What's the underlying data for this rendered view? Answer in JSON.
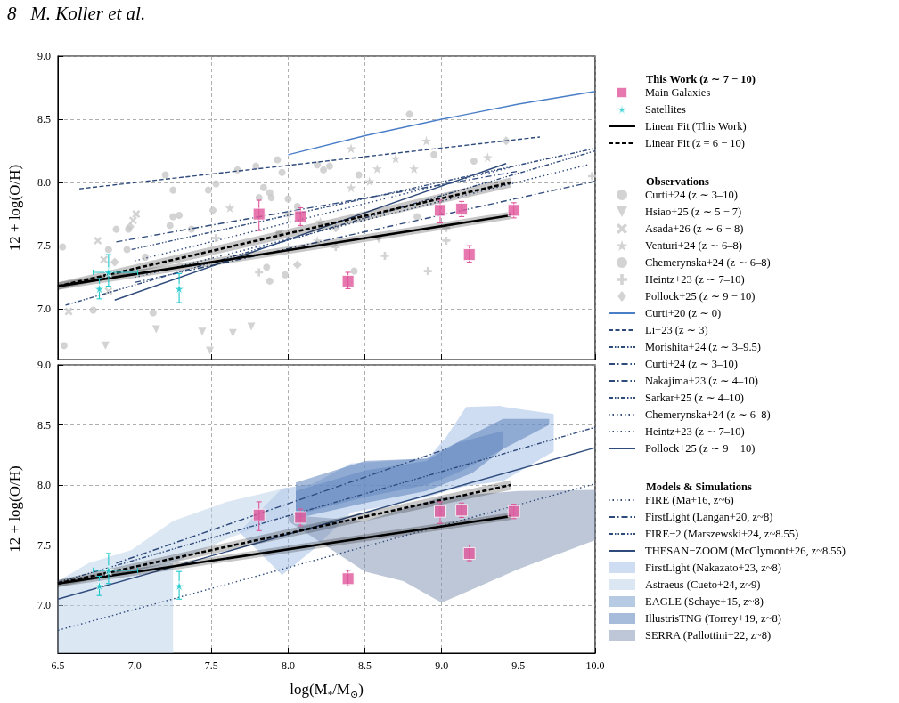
{
  "chart_data": [
    {
      "type": "scatter",
      "legend": "right",
      "legend_title": "This Work (z ∼ 7 − 10)",
      "ylabel": "12 + log(O/H)",
      "grid": true,
      "tick_labels": "y",
      "annotations": [
        "8   M. Koller et al.",
        "Observations"
      ],
      "xlim": [
        6.5,
        10.0
      ],
      "xticks": [
        {
          "value": 6.5,
          "label": "6.5"
        },
        {
          "value": 7,
          "label": "7.0"
        },
        {
          "value": 7.5,
          "label": "7.5"
        },
        {
          "value": 8,
          "label": "8.0"
        },
        {
          "value": 8.5,
          "label": "8.5"
        },
        {
          "value": 9,
          "label": "9.0"
        },
        {
          "value": 9.5,
          "label": "9.5"
        },
        {
          "value": 10,
          "label": "10.0"
        }
      ],
      "ylim": [
        6.6,
        9.0
      ],
      "yticks": [
        {
          "value": 7,
          "label": "7.0"
        },
        {
          "value": 7.5,
          "label": "7.5"
        },
        {
          "value": 8,
          "label": "8.0"
        },
        {
          "value": 8.5,
          "label": "8.5"
        },
        {
          "value": 9,
          "label": "9.0"
        }
      ],
      "series": [
        {
          "name": "Main Galaxies",
          "marker": "square",
          "color": "#e0569b",
          "x": [
            7.81,
            8.08,
            8.39,
            8.99,
            9.13,
            9.18,
            9.47
          ],
          "values": [
            7.75,
            7.73,
            7.22,
            7.78,
            7.79,
            7.43,
            7.78
          ],
          "errors": [
            [
              7.62,
              7.86
            ],
            [
              7.66,
              7.8
            ],
            [
              7.16,
              7.29
            ],
            [
              7.68,
              7.86
            ],
            [
              7.73,
              7.85
            ],
            [
              7.37,
              7.5
            ],
            [
              7.72,
              7.84
            ]
          ]
        },
        {
          "name": "Satellites",
          "marker": "star",
          "color": "#1cc8cc",
          "x": [
            6.77,
            6.83,
            7.29
          ],
          "values": [
            7.16,
            7.29,
            7.16
          ],
          "errors": [
            [
              7.08,
              7.24
            ],
            [
              7.18,
              7.43
            ],
            [
              7.05,
              7.28
            ]
          ],
          "xerrors": [
            null,
            [
              6.73,
              7.02
            ],
            null
          ]
        },
        {
          "name": "Linear Fit (This Work)",
          "type": "line",
          "line_style": "solid",
          "color": "#000000",
          "x": [
            6.5,
            9.45
          ],
          "values": [
            7.18,
            7.74
          ],
          "lower": [
            7.15,
            7.71
          ],
          "upper": [
            7.21,
            7.77
          ]
        },
        {
          "name": "Linear Fit (z = 6 − 10)",
          "type": "line",
          "line_style": "dashed",
          "color": "#000000",
          "x": [
            6.5,
            9.45
          ],
          "values": [
            7.18,
            8.0
          ],
          "lower": [
            7.15,
            7.96
          ],
          "upper": [
            7.21,
            8.04
          ]
        },
        {
          "name": "Curti+24 (z ∼ 3–10)",
          "marker": "circle",
          "color": "#c8c8c8",
          "x": [
            8.79,
            7.93,
            7.79,
            7.67,
            7.96,
            8.19,
            8.23,
            8.27,
            8.95,
            9.21,
            7.2,
            7.25,
            7.53,
            7.48,
            7.84,
            7.88,
            7.81,
            7.89,
            8.0,
            8.46,
            8.06,
            8.0,
            7.25,
            7.29,
            7.23,
            7.37,
            6.88,
            6.96,
            6.95,
            7.07,
            7.51,
            7.94,
            7.86,
            7.88,
            7.98,
            8.4,
            8.43,
            8.84
          ],
          "values": [
            8.54,
            8.18,
            8.13,
            8.1,
            8.08,
            8.14,
            8.1,
            8.13,
            8.22,
            8.17,
            8.06,
            7.94,
            7.99,
            7.94,
            7.96,
            7.92,
            7.88,
            7.88,
            7.87,
            8.06,
            7.81,
            7.75,
            7.73,
            7.74,
            7.66,
            7.63,
            7.63,
            7.63,
            7.47,
            7.41,
            7.78,
            7.6,
            7.33,
            7.22,
            7.27,
            null,
            7.3,
            7.73
          ]
        },
        {
          "name": "Hsiao+25 (z ∼ 5 − 7)",
          "marker": "triangle_down",
          "color": "#c8c8c8",
          "x": [
            6.81,
            7.14,
            7.44,
            7.49,
            7.64,
            7.76,
            8.59
          ],
          "values": [
            6.71,
            6.84,
            6.82,
            6.67,
            6.81,
            6.86,
            7.55
          ]
        },
        {
          "name": "Asada+26 (z ∼ 6 − 8)",
          "marker": "cross",
          "color": "#c8c8c8",
          "x": [
            6.76,
            7.01,
            6.99,
            6.57,
            6.8,
            6.83
          ],
          "values": [
            7.54,
            7.75,
            7.7,
            6.98,
            7.39,
            7.14
          ]
        },
        {
          "name": "Venturi+24 (z ∼ 6–8)",
          "marker": "star",
          "color": "#c8c8c8",
          "x": [
            8.41,
            8.58,
            8.7,
            8.9,
            9.3,
            8.82,
            7.62,
            8.21,
            8.19,
            8.41,
            8.53
          ],
          "values": [
            8.27,
            8.11,
            8.19,
            8.33,
            8.2,
            8.11,
            7.8,
            7.69,
            7.54,
            7.96,
            8.01
          ]
        },
        {
          "name": "Chemerynska+24 (z ∼ 6–8)",
          "marker": "circle",
          "color": "#c8c8c8",
          "x": [
            6.54,
            6.73,
            7.12,
            6.53,
            6.83
          ],
          "values": [
            6.71,
            6.99,
            6.97,
            7.49,
            7.47
          ]
        },
        {
          "name": "Heintz+23 (z ∼ 7–10)",
          "marker": "plus",
          "color": "#c8c8c8",
          "x": [
            8.91,
            8.63,
            9.03,
            9.03,
            7.81,
            7.53,
            8.31,
            9.98
          ],
          "values": [
            7.3,
            7.42,
            7.54,
            7.64,
            7.29,
            7.56,
            7.49,
            8.05
          ]
        },
        {
          "name": "Pollock+25 (z ∼ 9 − 10)",
          "marker": "diamond",
          "color": "#c8c8c8",
          "x": [
            9.42,
            8.06,
            6.97,
            6.87,
            8.31
          ],
          "values": [
            8.33,
            7.35,
            7.65,
            7.37,
            7.64
          ]
        },
        {
          "name": "Curti+20 (z ∼ 0)",
          "type": "line",
          "line_style": "solid",
          "color": "#4a7fc8",
          "x": [
            8.0,
            8.5,
            9.0,
            9.5,
            10.0
          ],
          "values": [
            8.22,
            8.37,
            8.5,
            8.62,
            8.72
          ]
        },
        {
          "name": "Li+23 (z ∼ 3)",
          "type": "line",
          "line_style": "dashed",
          "color": "#2f4b7c",
          "x": [
            6.64,
            9.64
          ],
          "values": [
            7.95,
            8.36
          ]
        },
        {
          "name": "Morishita+24 (z ∼ 3–9.5)",
          "type": "line",
          "line_style": "dashdotdot",
          "color": "#2f4b7c",
          "x": [
            6.98,
            10.0
          ],
          "values": [
            7.47,
            8.27
          ]
        },
        {
          "name": "Curti+24 (z ∼ 3–10)",
          "type": "line",
          "line_style": "dashdot",
          "color": "#2f4b7c",
          "x": [
            6.88,
            9.5
          ],
          "values": [
            7.53,
            8.09
          ]
        },
        {
          "name": "Nakajima+23 (z ∼ 4–10)",
          "type": "line",
          "line_style": "dashdot",
          "color": "#2f4b7c",
          "x": [
            7.0,
            10.0
          ],
          "values": [
            7.21,
            8.01
          ]
        },
        {
          "name": "Sarkar+25 (z ∼ 4–10)",
          "type": "line",
          "line_style": "dashdotdot",
          "color": "#2f4b7c",
          "x": [
            6.55,
            10.0
          ],
          "values": [
            7.03,
            8.25
          ]
        },
        {
          "name": "Chemerynska+24 (z ∼ 6–8)",
          "type": "line",
          "line_style": "dotted",
          "color": "#2f4b7c",
          "x": [
            7.0,
            9.95
          ],
          "values": [
            7.25,
            8.14
          ]
        },
        {
          "name": "Heintz+23 (z ∼ 7–10)",
          "type": "line",
          "line_style": "dotted",
          "color": "#2f4b7c",
          "x": [
            7.0,
            9.45
          ],
          "values": [
            7.38,
            8.12
          ]
        },
        {
          "name": "Pollock+25 (z ∼ 9 − 10)",
          "type": "line",
          "line_style": "solid",
          "color": "#2f4b7c",
          "x": [
            6.87,
            9.42
          ],
          "values": [
            7.07,
            8.15
          ]
        }
      ]
    },
    {
      "type": "scatter",
      "legend": "right",
      "legend_title": "Models & Simulations",
      "xlabel": "log(M$_{*}$/M$_{⊙}$)",
      "ylabel": "12 + log(O/H)",
      "grid": true,
      "xlim": [
        6.5,
        10.0
      ],
      "xticks": [
        {
          "value": 6.5,
          "label": "6.5"
        },
        {
          "value": 7,
          "label": "7.0"
        },
        {
          "value": 7.5,
          "label": "7.5"
        },
        {
          "value": 8,
          "label": "8.0"
        },
        {
          "value": 8.5,
          "label": "8.5"
        },
        {
          "value": 9,
          "label": "9.0"
        },
        {
          "value": 9.5,
          "label": "9.5"
        },
        {
          "value": 10,
          "label": "10.0"
        }
      ],
      "ylim": [
        6.6,
        9.0
      ],
      "yticks": [
        {
          "value": 7,
          "label": "7.0"
        },
        {
          "value": 7.5,
          "label": "7.5"
        },
        {
          "value": 8,
          "label": "8.0"
        },
        {
          "value": 8.5,
          "label": "8.5"
        },
        {
          "value": 9,
          "label": "9.0"
        }
      ],
      "series": [
        {
          "name": "Main Galaxies",
          "marker": "square",
          "color": "#e0569b",
          "x": [
            7.81,
            8.08,
            8.39,
            8.99,
            9.13,
            9.18,
            9.47
          ],
          "values": [
            7.75,
            7.73,
            7.22,
            7.78,
            7.79,
            7.43,
            7.78
          ],
          "errors": [
            [
              7.62,
              7.86
            ],
            [
              7.66,
              7.8
            ],
            [
              7.16,
              7.29
            ],
            [
              7.68,
              7.86
            ],
            [
              7.73,
              7.85
            ],
            [
              7.37,
              7.5
            ],
            [
              7.72,
              7.84
            ]
          ]
        },
        {
          "name": "Satellites",
          "marker": "star",
          "color": "#1cc8cc",
          "x": [
            6.77,
            6.83,
            7.29
          ],
          "values": [
            7.16,
            7.29,
            7.16
          ],
          "errors": [
            [
              7.08,
              7.24
            ],
            [
              7.18,
              7.43
            ],
            [
              7.05,
              7.28
            ]
          ],
          "xerrors": [
            null,
            [
              6.73,
              7.02
            ],
            null
          ]
        },
        {
          "name": "Linear Fit (This Work)",
          "type": "line",
          "line_style": "solid",
          "color": "#000000",
          "x": [
            6.5,
            9.45
          ],
          "values": [
            7.18,
            7.74
          ],
          "lower": [
            7.15,
            7.71
          ],
          "upper": [
            7.21,
            7.77
          ]
        },
        {
          "name": "Linear Fit (z = 6 − 10)",
          "type": "line",
          "line_style": "dashed",
          "color": "#000000",
          "x": [
            6.5,
            9.45
          ],
          "values": [
            7.18,
            8.0
          ],
          "lower": [
            7.15,
            7.96
          ],
          "upper": [
            7.21,
            8.04
          ]
        },
        {
          "name": "FIRE (Ma+16, z~6)",
          "type": "line",
          "line_style": "dotted",
          "color": "#2f4b7c",
          "x": [
            6.5,
            10.0
          ],
          "values": [
            6.79,
            8.01
          ]
        },
        {
          "name": "FirstLight (Langan+20, z~8)",
          "type": "line",
          "line_style": "dashdot",
          "color": "#2f4b7c",
          "x": [
            6.88,
            9.03
          ],
          "values": [
            7.35,
            8.3
          ]
        },
        {
          "name": "FIRE−2 (Marszewski+24, z~8.55)",
          "type": "line",
          "line_style": "dashdotdot",
          "color": "#2f4b7c",
          "x": [
            6.5,
            10.0
          ],
          "values": [
            7.19,
            8.48
          ]
        },
        {
          "name": "THESAN−ZOOM (McClymont+26, z~8.55)",
          "type": "line",
          "line_style": "solid",
          "color": "#2f4b7c",
          "x": [
            6.5,
            10.0
          ],
          "values": [
            7.05,
            8.31
          ]
        },
        {
          "name": "FirstLight (Nakazato+23, z~8)",
          "type": "area",
          "color": "#9dbbe3",
          "x": [
            7.68,
            7.96,
            8.16,
            8.41,
            8.66,
            8.91,
            9.03,
            9.16,
            9.38,
            9.41,
            9.73
          ],
          "values": [
            null,
            null,
            null,
            null,
            null,
            null,
            null,
            null,
            null,
            null,
            null
          ],
          "lower": [
            7.61,
            7.25,
            7.46,
            7.77,
            7.83,
            7.9,
            7.95,
            7.99,
            8.03,
            8.04,
            8.28
          ],
          "upper": [
            7.61,
            7.97,
            8.01,
            8.18,
            8.2,
            8.22,
            8.4,
            8.65,
            8.66,
            8.65,
            8.59
          ]
        },
        {
          "name": "Astraeus (Cueto+24, z~9)",
          "type": "area",
          "color": "#b9cfea",
          "x": [
            6.5,
            6.7,
            6.98,
            7.25,
            7.25,
            7.6,
            8.0
          ],
          "values": [
            null,
            null,
            null,
            null,
            null,
            null,
            null
          ],
          "lower": [
            6.6,
            6.6,
            6.6,
            6.6,
            7.35,
            7.55,
            7.75
          ],
          "upper": [
            7.2,
            7.35,
            7.46,
            7.7,
            7.7,
            7.86,
            7.98
          ]
        },
        {
          "name": "EAGLE (Schaye+15, z~8)",
          "type": "area",
          "color": "#6f95c9",
          "x": [
            8.05,
            8.5,
            8.9,
            9.1,
            9.4
          ],
          "values": [
            null,
            null,
            null,
            null,
            null
          ],
          "lower": [
            7.75,
            7.9,
            8.0,
            8.1,
            8.3
          ],
          "upper": [
            7.95,
            8.12,
            8.2,
            8.35,
            8.45
          ]
        },
        {
          "name": "IllustrisTNG (Torrey+19, z~8)",
          "type": "area",
          "color": "#4f78b6",
          "x": [
            8.05,
            8.5,
            8.9,
            9.2,
            9.4,
            9.7
          ],
          "values": [
            null,
            null,
            null,
            null,
            null,
            null
          ],
          "lower": [
            7.72,
            7.85,
            7.95,
            8.1,
            8.3,
            8.5
          ],
          "upper": [
            8.02,
            8.2,
            8.22,
            8.42,
            8.55,
            8.55
          ]
        },
        {
          "name": "SERRA (Pallottini+22, z~8)",
          "type": "area",
          "color": "#7d90b0",
          "x": [
            8.0,
            8.5,
            8.75,
            9.0,
            9.5,
            10.0
          ],
          "values": [
            null,
            null,
            null,
            null,
            null,
            null
          ],
          "lower": [
            7.7,
            7.28,
            7.2,
            7.02,
            7.3,
            7.54
          ],
          "upper": [
            7.75,
            7.7,
            7.8,
            7.9,
            7.95,
            7.96
          ]
        }
      ]
    }
  ]
}
